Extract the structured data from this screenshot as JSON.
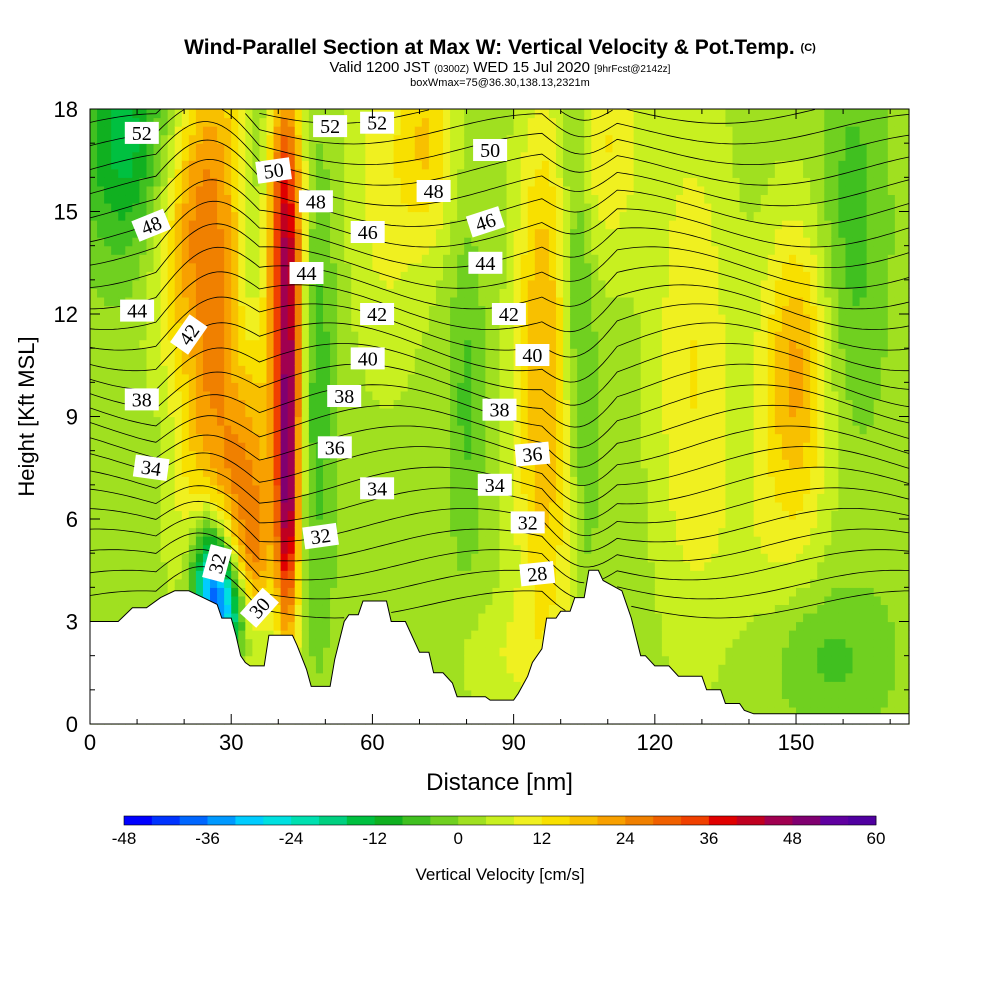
{
  "title": {
    "main": "Wind-Parallel Section at Max W: Vertical Velocity & Pot.Temp.",
    "copyright": "(C)",
    "valid_prefix": "Valid 1200 JST",
    "valid_utc": "(0300Z)",
    "valid_date": "WED 15 Jul 2020",
    "forecast": "[9hrFcst@2142z]",
    "box_info": "boxWmax=75@36.30,138.13,2321m"
  },
  "colors": {
    "terrain": "#ffffff",
    "background_field": "#8fd41c",
    "contour": "#000000"
  },
  "chart_data": {
    "type": "heatmap",
    "xlabel": "Distance [nm]",
    "ylabel": "Height [Kft MSL]",
    "xlim": [
      0,
      174
    ],
    "ylim": [
      0,
      18
    ],
    "x_ticks": [
      "0",
      "30",
      "60",
      "90",
      "120",
      "150"
    ],
    "x_tick_values": [
      0,
      30,
      60,
      90,
      120,
      150
    ],
    "y_ticks": [
      "0",
      "3",
      "6",
      "9",
      "12",
      "15",
      "18"
    ],
    "y_tick_values": [
      0,
      3,
      6,
      9,
      12,
      15,
      18
    ],
    "colorbar": {
      "label": "Vertical Velocity [cm/s]",
      "min": -48,
      "max": 60,
      "step": 4,
      "tick_labels": [
        "-48",
        "-36",
        "-24",
        "-12",
        "0",
        "12",
        "24",
        "36",
        "48",
        "60"
      ],
      "tick_values": [
        -48,
        -36,
        -24,
        -12,
        0,
        12,
        24,
        36,
        48,
        60
      ],
      "colors": [
        "#0000ff",
        "#0033ff",
        "#0066ff",
        "#0099ff",
        "#00ccff",
        "#00e0e0",
        "#00e0b0",
        "#00d080",
        "#00c040",
        "#10b020",
        "#40c020",
        "#70d020",
        "#a0e020",
        "#c8f020",
        "#f0f020",
        "#f8e000",
        "#f8c000",
        "#f8a000",
        "#f08000",
        "#f06000",
        "#f04000",
        "#e00000",
        "#c00020",
        "#a00050",
        "#800070",
        "#6000a0",
        "#5000a0"
      ]
    },
    "w_features": [
      {
        "x": 7,
        "z": 17.2,
        "sx": 6,
        "sz": 2.5,
        "tilt": 0,
        "w": -16
      },
      {
        "x": 22,
        "z": 15.0,
        "sx": 5,
        "sz": 3.5,
        "tilt": 1.0,
        "w": 22
      },
      {
        "x": 26,
        "z": 11.0,
        "sx": 5,
        "sz": 4.0,
        "tilt": 1.0,
        "w": 22
      },
      {
        "x": 31,
        "z": 7.5,
        "sx": 4,
        "sz": 3.0,
        "tilt": 0.9,
        "w": 22
      },
      {
        "x": 35,
        "z": 5.0,
        "sx": 3,
        "sz": 2.0,
        "tilt": 0.4,
        "w": 20
      },
      {
        "x": 35,
        "z": 15.0,
        "sx": 3,
        "sz": 5.5,
        "tilt": 0.5,
        "w": -10
      },
      {
        "x": 18,
        "z": 10.0,
        "sx": 5,
        "sz": 4.0,
        "tilt": 0.6,
        "w": -7
      },
      {
        "x": 26,
        "z": 4.0,
        "sx": 3,
        "sz": 1.5,
        "tilt": 0,
        "w": -42
      },
      {
        "x": 30,
        "z": 3.2,
        "sx": 3,
        "sz": 1.0,
        "tilt": 0,
        "w": -20
      },
      {
        "x": 42,
        "z": 10.0,
        "sx": 2.2,
        "sz": 4.5,
        "tilt": 0,
        "w": 38
      },
      {
        "x": 42,
        "z": 6.0,
        "sx": 1.4,
        "sz": 2.5,
        "tilt": 0,
        "w": 20
      },
      {
        "x": 41,
        "z": 15.5,
        "sx": 3,
        "sz": 3.0,
        "tilt": 0,
        "w": 20
      },
      {
        "x": 48,
        "z": 10.0,
        "sx": 3,
        "sz": 5.0,
        "tilt": 0,
        "w": -9
      },
      {
        "x": 63,
        "z": 16.0,
        "sx": 6,
        "sz": 4.0,
        "tilt": 0,
        "w": 8
      },
      {
        "x": 72,
        "z": 17.0,
        "sx": 4,
        "sz": 2.0,
        "tilt": 0,
        "w": 12
      },
      {
        "x": 80,
        "z": 9.5,
        "sx": 2.5,
        "sz": 3.5,
        "tilt": 0,
        "w": -7
      },
      {
        "x": 96,
        "z": 12.0,
        "sx": 4,
        "sz": 4.5,
        "tilt": 0,
        "w": 16
      },
      {
        "x": 97,
        "z": 5.5,
        "sx": 5,
        "sz": 3.5,
        "tilt": 0,
        "w": 8
      },
      {
        "x": 104,
        "z": 12.0,
        "sx": 2.2,
        "sz": 5.5,
        "tilt": -0.2,
        "w": -9
      },
      {
        "x": 110,
        "z": 17.0,
        "sx": 5,
        "sz": 2.5,
        "tilt": 0,
        "w": 10
      },
      {
        "x": 128,
        "z": 10.5,
        "sx": 6,
        "sz": 5.5,
        "tilt": 0,
        "w": 10
      },
      {
        "x": 150,
        "z": 10.5,
        "sx": 5,
        "sz": 3.0,
        "tilt": 0,
        "w": 18
      },
      {
        "x": 145,
        "z": 5.0,
        "sx": 8,
        "sz": 3.5,
        "tilt": 0,
        "w": 5
      },
      {
        "x": 162,
        "z": 14.5,
        "sx": 5,
        "sz": 4.0,
        "tilt": 0,
        "w": -8
      },
      {
        "x": 155,
        "z": 2.0,
        "sx": 10,
        "sz": 1.5,
        "tilt": 0,
        "w": -8
      },
      {
        "x": 88,
        "z": 2.0,
        "sx": 8,
        "sz": 1.2,
        "tilt": 0,
        "w": 5
      }
    ],
    "terrain_profile": {
      "x": [
        0,
        6,
        9,
        12,
        15,
        18,
        21,
        24,
        27,
        28,
        30,
        31,
        32,
        33,
        34,
        36,
        37,
        38,
        40,
        41,
        43,
        44,
        46,
        47,
        48,
        49,
        51,
        52,
        54,
        55,
        57,
        58,
        61,
        63,
        64,
        67,
        68,
        70,
        72,
        73,
        75,
        77,
        78,
        80,
        84,
        85,
        87,
        88,
        90,
        91,
        93,
        94,
        96,
        97,
        99,
        100,
        102,
        103,
        105,
        106,
        108,
        109,
        113,
        115,
        117,
        118,
        120,
        122,
        123,
        125,
        126,
        130,
        131,
        134,
        135,
        138,
        139,
        141,
        142,
        144,
        145,
        148,
        150,
        170,
        174
      ],
      "z": [
        3.0,
        3.0,
        3.4,
        3.4,
        3.7,
        3.9,
        3.9,
        3.7,
        3.5,
        3.1,
        3.1,
        2.6,
        2.0,
        1.8,
        1.7,
        1.7,
        1.7,
        2.6,
        2.6,
        2.6,
        2.6,
        2.3,
        1.6,
        1.1,
        1.1,
        1.1,
        1.1,
        1.9,
        3.0,
        3.2,
        3.2,
        3.6,
        3.6,
        3.6,
        3.0,
        3.0,
        2.7,
        2.1,
        2.1,
        1.5,
        1.5,
        1.2,
        0.8,
        0.8,
        0.8,
        0.7,
        0.7,
        0.7,
        0.7,
        0.9,
        1.4,
        1.8,
        2.2,
        3.1,
        3.1,
        3.3,
        3.3,
        3.7,
        3.7,
        4.5,
        4.5,
        4.2,
        3.9,
        3.1,
        2.0,
        2.0,
        1.7,
        1.7,
        1.7,
        1.4,
        1.4,
        1.4,
        1.0,
        1.0,
        0.6,
        0.6,
        0.4,
        0.3,
        0.3,
        0.3,
        0.3,
        0.3,
        0.3,
        0.3,
        0.3
      ]
    },
    "theta_contours": {
      "start": 28,
      "end": 54,
      "step": 1,
      "label_step": 2,
      "note": "Potential temperature isolines"
    },
    "contour_labels": [
      {
        "text": "52",
        "x": 11,
        "z": 17.3,
        "angle": 0
      },
      {
        "text": "48",
        "x": 13,
        "z": 14.6,
        "angle": -22
      },
      {
        "text": "44",
        "x": 10,
        "z": 12.1,
        "angle": 0
      },
      {
        "text": "42",
        "x": 21,
        "z": 11.4,
        "angle": -55
      },
      {
        "text": "38",
        "x": 11,
        "z": 9.5,
        "angle": 0
      },
      {
        "text": "34",
        "x": 13,
        "z": 7.5,
        "angle": 8
      },
      {
        "text": "32",
        "x": 27,
        "z": 4.7,
        "angle": -75
      },
      {
        "text": "30",
        "x": 36,
        "z": 3.4,
        "angle": -48
      },
      {
        "text": "50",
        "x": 39,
        "z": 16.2,
        "angle": -8
      },
      {
        "text": "52",
        "x": 51,
        "z": 17.5,
        "angle": 0
      },
      {
        "text": "52",
        "x": 61,
        "z": 17.6,
        "angle": 0
      },
      {
        "text": "48",
        "x": 48,
        "z": 15.3,
        "angle": 0
      },
      {
        "text": "44",
        "x": 46,
        "z": 13.2,
        "angle": 0
      },
      {
        "text": "46",
        "x": 59,
        "z": 14.4,
        "angle": 0
      },
      {
        "text": "42",
        "x": 61,
        "z": 12.0,
        "angle": 0
      },
      {
        "text": "40",
        "x": 59,
        "z": 10.7,
        "angle": 0
      },
      {
        "text": "38",
        "x": 54,
        "z": 9.6,
        "angle": 0
      },
      {
        "text": "36",
        "x": 52,
        "z": 8.1,
        "angle": 0
      },
      {
        "text": "34",
        "x": 61,
        "z": 6.9,
        "angle": 0
      },
      {
        "text": "32",
        "x": 49,
        "z": 5.5,
        "angle": -8
      },
      {
        "text": "48",
        "x": 73,
        "z": 15.6,
        "angle": 0
      },
      {
        "text": "50",
        "x": 85,
        "z": 16.8,
        "angle": 0
      },
      {
        "text": "46",
        "x": 84,
        "z": 14.7,
        "angle": -18
      },
      {
        "text": "44",
        "x": 84,
        "z": 13.5,
        "angle": 0
      },
      {
        "text": "42",
        "x": 89,
        "z": 12.0,
        "angle": 0
      },
      {
        "text": "40",
        "x": 94,
        "z": 10.8,
        "angle": 0
      },
      {
        "text": "38",
        "x": 87,
        "z": 9.2,
        "angle": 0
      },
      {
        "text": "36",
        "x": 94,
        "z": 7.9,
        "angle": -5
      },
      {
        "text": "34",
        "x": 86,
        "z": 7.0,
        "angle": 0
      },
      {
        "text": "32",
        "x": 93,
        "z": 5.9,
        "angle": 0
      },
      {
        "text": "28",
        "x": 95,
        "z": 4.4,
        "angle": -6
      }
    ]
  }
}
